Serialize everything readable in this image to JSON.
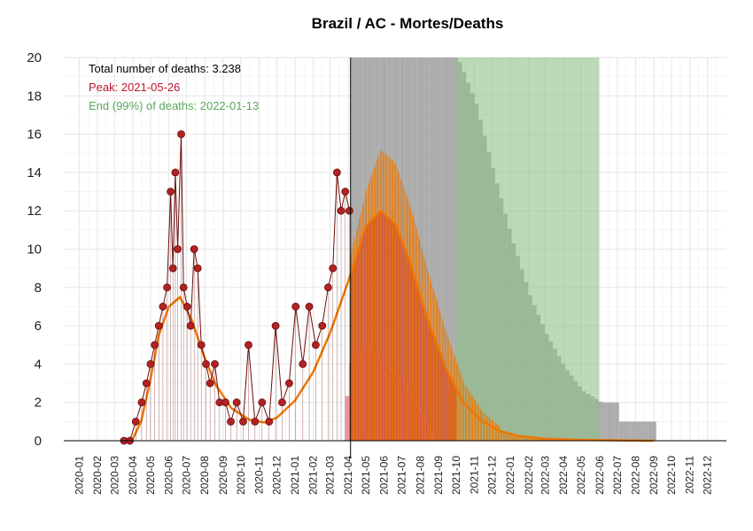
{
  "chart_data": {
    "type": "line",
    "title": "Brazil / AC - Mortes/Deaths",
    "ylim": [
      0,
      20
    ],
    "y_ticks": [
      0,
      2,
      4,
      6,
      8,
      10,
      12,
      14,
      16,
      18,
      20
    ],
    "x_ticks": [
      "2020-01",
      "2020-02",
      "2020-03",
      "2020-04",
      "2020-05",
      "2020-06",
      "2020-07",
      "2020-08",
      "2020-09",
      "2020-10",
      "2020-11",
      "2020-12",
      "2021-01",
      "2021-02",
      "2021-03",
      "2021-04",
      "2021-05",
      "2021-06",
      "2021-07",
      "2021-08",
      "2021-09",
      "2021-10",
      "2021-11",
      "2021-12",
      "2022-01",
      "2022-02",
      "2022-03",
      "2022-04",
      "2022-05",
      "2022-06",
      "2022-07",
      "2022-08",
      "2022-09",
      "2022-10",
      "2022-11",
      "2022-12"
    ],
    "grid": true,
    "forecast_start": "2021-04-05",
    "annotations": {
      "total": "Total number of deaths: 3.238",
      "peak": "Peak: 2021-05-26",
      "end": "End (99%) of deaths: 2022-01-13"
    },
    "colors": {
      "points": "#b22222",
      "points_edge": "#6b0d0d",
      "fit_line": "#ee7700",
      "forecast_fill": "#c0354f",
      "prediction_band": "#999999",
      "end_band": "#8fbf88",
      "total_text": "#000000",
      "peak_text": "#c0152f",
      "end_text": "#5aa85a"
    },
    "observed_deaths": [
      [
        "2020-03-17",
        0
      ],
      [
        "2020-03-27",
        0
      ],
      [
        "2020-04-06",
        1
      ],
      [
        "2020-04-16",
        2
      ],
      [
        "2020-04-24",
        3
      ],
      [
        "2020-05-01",
        4
      ],
      [
        "2020-05-08",
        5
      ],
      [
        "2020-05-15",
        6
      ],
      [
        "2020-05-22",
        7
      ],
      [
        "2020-05-29",
        8
      ],
      [
        "2020-06-04",
        13
      ],
      [
        "2020-06-08",
        9
      ],
      [
        "2020-06-12",
        14
      ],
      [
        "2020-06-16",
        10
      ],
      [
        "2020-06-22",
        16
      ],
      [
        "2020-06-26",
        8
      ],
      [
        "2020-07-02",
        7
      ],
      [
        "2020-07-08",
        6
      ],
      [
        "2020-07-14",
        10
      ],
      [
        "2020-07-20",
        9
      ],
      [
        "2020-07-26",
        5
      ],
      [
        "2020-08-03",
        4
      ],
      [
        "2020-08-10",
        3
      ],
      [
        "2020-08-18",
        4
      ],
      [
        "2020-08-26",
        2
      ],
      [
        "2020-09-05",
        2
      ],
      [
        "2020-09-14",
        1
      ],
      [
        "2020-09-24",
        2
      ],
      [
        "2020-10-05",
        1
      ],
      [
        "2020-10-14",
        5
      ],
      [
        "2020-10-25",
        1
      ],
      [
        "2020-11-06",
        2
      ],
      [
        "2020-11-18",
        1
      ],
      [
        "2020-11-29",
        6
      ],
      [
        "2020-12-10",
        2
      ],
      [
        "2020-12-22",
        3
      ],
      [
        "2021-01-02",
        7
      ],
      [
        "2021-01-14",
        4
      ],
      [
        "2021-01-25",
        7
      ],
      [
        "2021-02-05",
        5
      ],
      [
        "2021-02-16",
        6
      ],
      [
        "2021-02-26",
        8
      ],
      [
        "2021-03-06",
        9
      ],
      [
        "2021-03-13",
        14
      ],
      [
        "2021-03-20",
        12
      ],
      [
        "2021-03-27",
        13
      ],
      [
        "2021-04-03",
        12
      ]
    ],
    "fitted_curve": [
      [
        "2020-03-15",
        0
      ],
      [
        "2020-04-01",
        0.1
      ],
      [
        "2020-04-15",
        1
      ],
      [
        "2020-05-01",
        3.2
      ],
      [
        "2020-05-15",
        5.5
      ],
      [
        "2020-06-01",
        7
      ],
      [
        "2020-06-20",
        7.5
      ],
      [
        "2020-07-10",
        6.3
      ],
      [
        "2020-08-01",
        4.3
      ],
      [
        "2020-08-20",
        2.9
      ],
      [
        "2020-09-15",
        1.7
      ],
      [
        "2020-10-15",
        1.1
      ],
      [
        "2020-11-10",
        0.95
      ],
      [
        "2020-12-01",
        1.2
      ],
      [
        "2021-01-01",
        2.1
      ],
      [
        "2021-02-01",
        3.6
      ],
      [
        "2021-03-01",
        5.6
      ],
      [
        "2021-04-01",
        8.3
      ],
      [
        "2021-05-01",
        11.2
      ],
      [
        "2021-05-26",
        12
      ],
      [
        "2021-06-20",
        11.3
      ],
      [
        "2021-07-15",
        9.3
      ],
      [
        "2021-08-15",
        6.2
      ],
      [
        "2021-09-15",
        3.7
      ],
      [
        "2021-10-15",
        1.9
      ],
      [
        "2021-11-15",
        1
      ],
      [
        "2021-12-15",
        0.5
      ],
      [
        "2022-01-15",
        0.25
      ],
      [
        "2022-03-01",
        0.1
      ],
      [
        "2022-05-01",
        0.04
      ],
      [
        "2022-08-31",
        0
      ]
    ],
    "forecast_upper_curve": [
      [
        "2021-04-05",
        9.7
      ],
      [
        "2021-05-01",
        13
      ],
      [
        "2021-05-26",
        15.2
      ],
      [
        "2021-06-20",
        14.5
      ],
      [
        "2021-07-15",
        12.3
      ],
      [
        "2021-08-15",
        8.8
      ],
      [
        "2021-09-15",
        5.6
      ],
      [
        "2021-10-15",
        3
      ],
      [
        "2021-11-15",
        1.5
      ],
      [
        "2021-12-15",
        0.7
      ]
    ],
    "prediction_upper": [
      [
        "2021-04-05",
        20
      ],
      [
        "2021-09-01",
        20
      ],
      [
        "2021-10-01",
        20
      ],
      [
        "2021-11-01",
        17.6
      ],
      [
        "2021-12-01",
        14
      ],
      [
        "2022-01-01",
        10.5
      ],
      [
        "2022-02-01",
        7.5
      ],
      [
        "2022-03-01",
        5.5
      ],
      [
        "2022-04-01",
        3.8
      ],
      [
        "2022-05-01",
        2.6
      ],
      [
        "2022-06-01",
        2
      ],
      [
        "2022-06-30",
        2
      ],
      [
        "2022-07-01",
        1
      ],
      [
        "2022-08-31",
        1
      ]
    ],
    "prediction_lower": [
      [
        "2021-03-20",
        0
      ],
      [
        "2021-04-01",
        4
      ],
      [
        "2021-05-01",
        5
      ],
      [
        "2021-06-01",
        4
      ],
      [
        "2021-07-01",
        3
      ],
      [
        "2021-08-01",
        1.5
      ],
      [
        "2021-08-20",
        0
      ]
    ],
    "end_band_range": [
      "2021-10-01",
      "2022-05-31"
    ]
  }
}
